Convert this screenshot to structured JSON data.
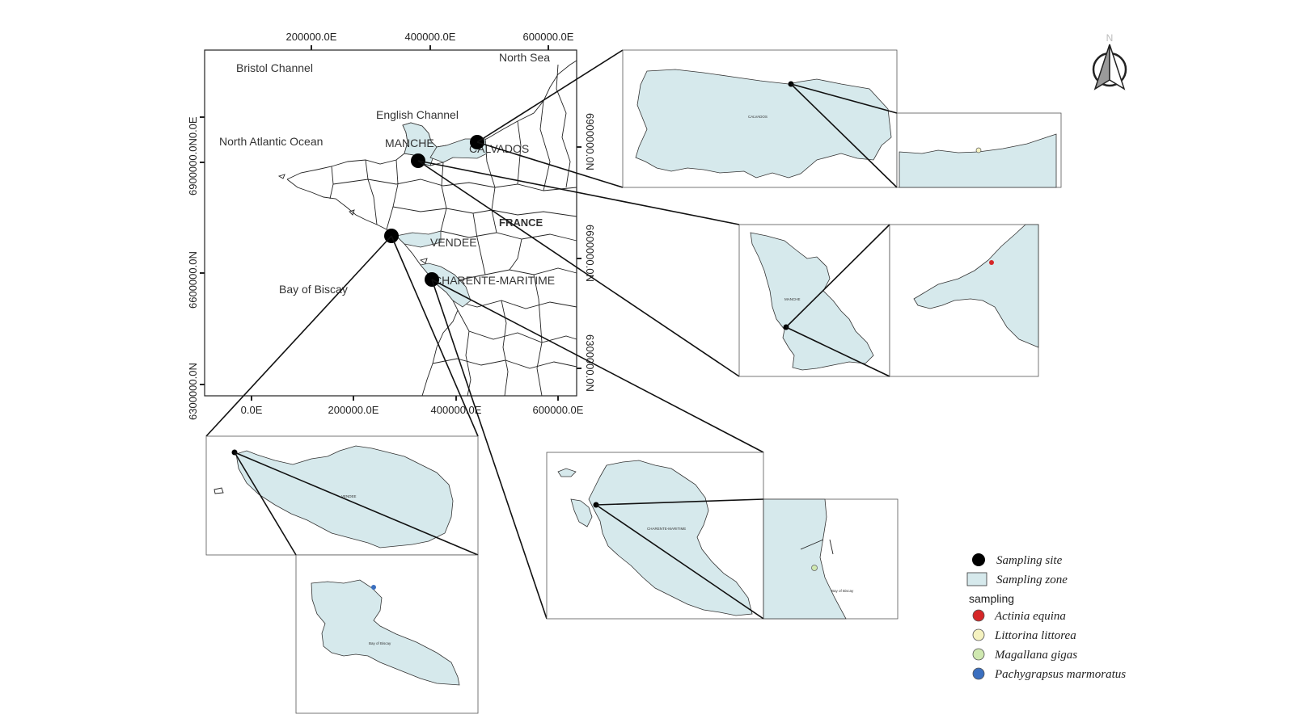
{
  "main_map": {
    "sea_labels": [
      "Bristol Channel",
      "North Sea",
      "English Channel",
      "North Atlantic Ocean",
      "Bay of Biscay"
    ],
    "country_label": "FRANCE",
    "zone_labels": [
      "MANCHE",
      "CALVADOS",
      "VENDEE",
      "CHARENTE-MARITIME"
    ],
    "top_ticks": [
      "200000.0E",
      "400000.0E",
      "600000.0E"
    ],
    "bottom_ticks": [
      "0.0E",
      "200000.0E",
      "400000.0E",
      "600000.0E"
    ],
    "left_ticks": [
      "6900000.0N0.0E",
      "6600000.0N",
      "6300000.0N"
    ],
    "right_ticks": [
      "6900000.0N",
      "6600000.0N",
      "6300000.0N"
    ]
  },
  "north_arrow": {
    "label": "N"
  },
  "insets": {
    "calvados": {
      "label": "CALVADOS"
    },
    "manche": {
      "label": "MANCHE"
    },
    "vendee": {
      "label": "VENDEE",
      "zoom_label": "Bay of Biscay"
    },
    "charente": {
      "label": "CHARENTE-MARITIME",
      "zoom_label": "Bay of Biscay"
    }
  },
  "legend": {
    "site_label": "Sampling site",
    "zone_label": "Sampling zone",
    "title": "sampling",
    "species": [
      {
        "name": "Actinia equina",
        "color": "#d62728"
      },
      {
        "name": "Littorina littorea",
        "color": "#f5f2c0"
      },
      {
        "name": "Magallana gigas",
        "color": "#cfe8b0"
      },
      {
        "name": "Pachygrapsus marmoratus",
        "color": "#3b6fbf"
      }
    ]
  },
  "colors": {
    "zone_fill": "#d6e9ec",
    "site": "#000000"
  }
}
